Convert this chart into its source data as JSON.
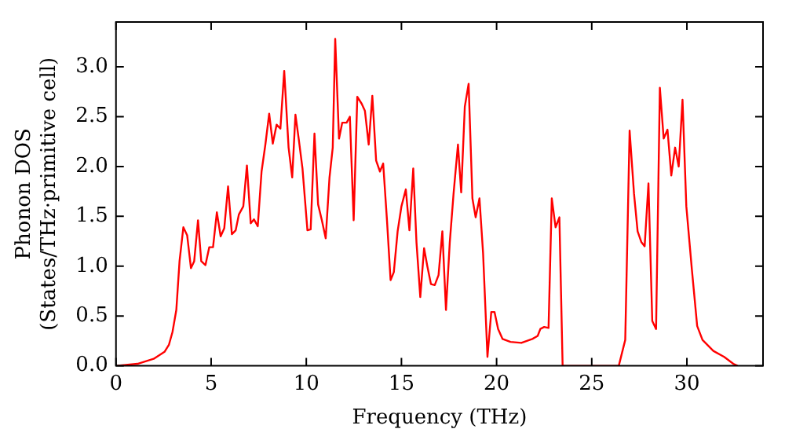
{
  "chart_data": {
    "type": "line",
    "xlabel": "Frequency (THz)",
    "ylabel": "Phonon DOS (States/THz·primitive cell)",
    "xlim": [
      0,
      34
    ],
    "ylim": [
      0,
      3.45
    ],
    "xticks": [
      0,
      5,
      10,
      15,
      20,
      25,
      30
    ],
    "yticks": [
      {
        "value": 0,
        "label": "0.0"
      },
      {
        "value": 0.5,
        "label": "0.5"
      },
      {
        "value": 1,
        "label": "1.0"
      },
      {
        "value": 1.5,
        "label": "1.5"
      },
      {
        "value": 2,
        "label": "2.0"
      },
      {
        "value": 2.5,
        "label": "2.5"
      },
      {
        "value": 3,
        "label": "3.0"
      }
    ],
    "grid": false,
    "legend": false,
    "marker": "none",
    "line_style": "solid",
    "series": [
      {
        "color": "#ff0000",
        "x": [
          0,
          1.13,
          1.98,
          2.55,
          2.78,
          2.97,
          3.17,
          3.34,
          3.54,
          3.74,
          3.94,
          4.11,
          4.31,
          4.48,
          4.7,
          4.9,
          5.1,
          5.3,
          5.5,
          5.69,
          5.89,
          6.09,
          6.29,
          6.46,
          6.69,
          6.88,
          7.08,
          7.25,
          7.45,
          7.65,
          7.85,
          8.05,
          8.24,
          8.44,
          8.64,
          8.84,
          9.07,
          9.26,
          9.43,
          9.6,
          9.8,
          10.06,
          10.23,
          10.43,
          10.62,
          10.82,
          11.02,
          11.22,
          11.39,
          11.52,
          11.72,
          11.89,
          12.12,
          12.29,
          12.49,
          12.68,
          12.91,
          13.08,
          13.28,
          13.47,
          13.67,
          13.87,
          14.04,
          14.24,
          14.43,
          14.6,
          14.8,
          15,
          15.23,
          15.42,
          15.62,
          15.79,
          15.99,
          16.19,
          16.36,
          16.55,
          16.75,
          16.95,
          17.15,
          17.34,
          17.54,
          17.74,
          17.97,
          18.14,
          18.33,
          18.53,
          18.73,
          18.9,
          19.1,
          19.29,
          19.52,
          19.72,
          19.89,
          20.08,
          20.31,
          20.73,
          21.3,
          21.88,
          22.16,
          22.3,
          22.5,
          22.73,
          22.9,
          23.1,
          23.3,
          23.47,
          26.42,
          26.76,
          26.99,
          27.22,
          27.41,
          27.61,
          27.78,
          27.98,
          28.18,
          28.38,
          28.58,
          28.78,
          28.98,
          29.18,
          29.38,
          29.57,
          29.77,
          29.97,
          30.26,
          30.54,
          30.82,
          31.39,
          31.96,
          32.44,
          32.67
        ],
        "values": [
          0,
          0.02,
          0.07,
          0.14,
          0.21,
          0.34,
          0.56,
          1.05,
          1.39,
          1.31,
          0.98,
          1.05,
          1.46,
          1.05,
          1.01,
          1.19,
          1.19,
          1.54,
          1.3,
          1.38,
          1.8,
          1.32,
          1.36,
          1.52,
          1.6,
          2.01,
          1.43,
          1.47,
          1.4,
          1.95,
          2.22,
          2.53,
          2.23,
          2.42,
          2.38,
          2.96,
          2.19,
          1.89,
          2.52,
          2.28,
          1.98,
          1.36,
          1.37,
          2.33,
          1.62,
          1.46,
          1.28,
          1.89,
          2.19,
          3.28,
          2.28,
          2.44,
          2.44,
          2.5,
          1.46,
          2.7,
          2.63,
          2.56,
          2.22,
          2.71,
          2.06,
          1.95,
          2.03,
          1.46,
          0.86,
          0.94,
          1.35,
          1.6,
          1.77,
          1.36,
          1.98,
          1.24,
          0.69,
          1.18,
          1,
          0.82,
          0.81,
          0.91,
          1.35,
          0.56,
          1.24,
          1.73,
          2.22,
          1.74,
          2.6,
          2.83,
          1.68,
          1.49,
          1.68,
          1.13,
          0.09,
          0.54,
          0.54,
          0.37,
          0.27,
          0.24,
          0.23,
          0.27,
          0.3,
          0.37,
          0.39,
          0.38,
          1.68,
          1.39,
          1.49,
          0,
          0,
          0.26,
          2.36,
          1.73,
          1.35,
          1.24,
          1.2,
          1.83,
          0.45,
          0.37,
          2.79,
          2.28,
          2.37,
          1.91,
          2.19,
          2,
          2.67,
          1.6,
          0.97,
          0.4,
          0.26,
          0.15,
          0.09,
          0.02,
          0
        ]
      }
    ]
  }
}
